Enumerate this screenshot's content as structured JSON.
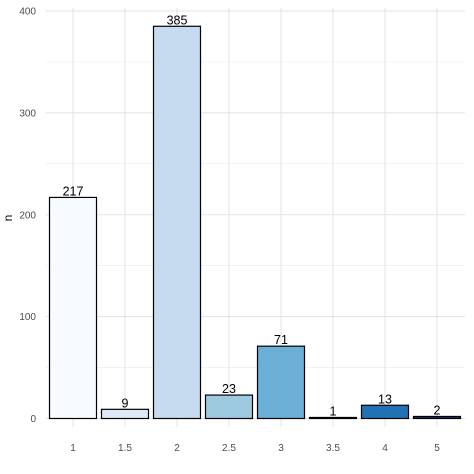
{
  "chart_data": {
    "type": "bar",
    "title": "",
    "xlabel": "",
    "ylabel": "n",
    "categories": [
      "1",
      "1.5",
      "2",
      "2.5",
      "3",
      "3.5",
      "4",
      "5"
    ],
    "values": [
      217,
      9,
      385,
      23,
      71,
      1,
      13,
      2
    ],
    "bar_colors": [
      "#f7fbff",
      "#deebf7",
      "#c6dbef",
      "#9ecae1",
      "#6baed6",
      "#4292c6",
      "#2171b5",
      "#08306b"
    ],
    "bar_border_color": "#000000",
    "ylim": [
      0,
      400
    ],
    "yticks": [
      0,
      100,
      200,
      300,
      400
    ],
    "grid": true,
    "legend": "none"
  }
}
